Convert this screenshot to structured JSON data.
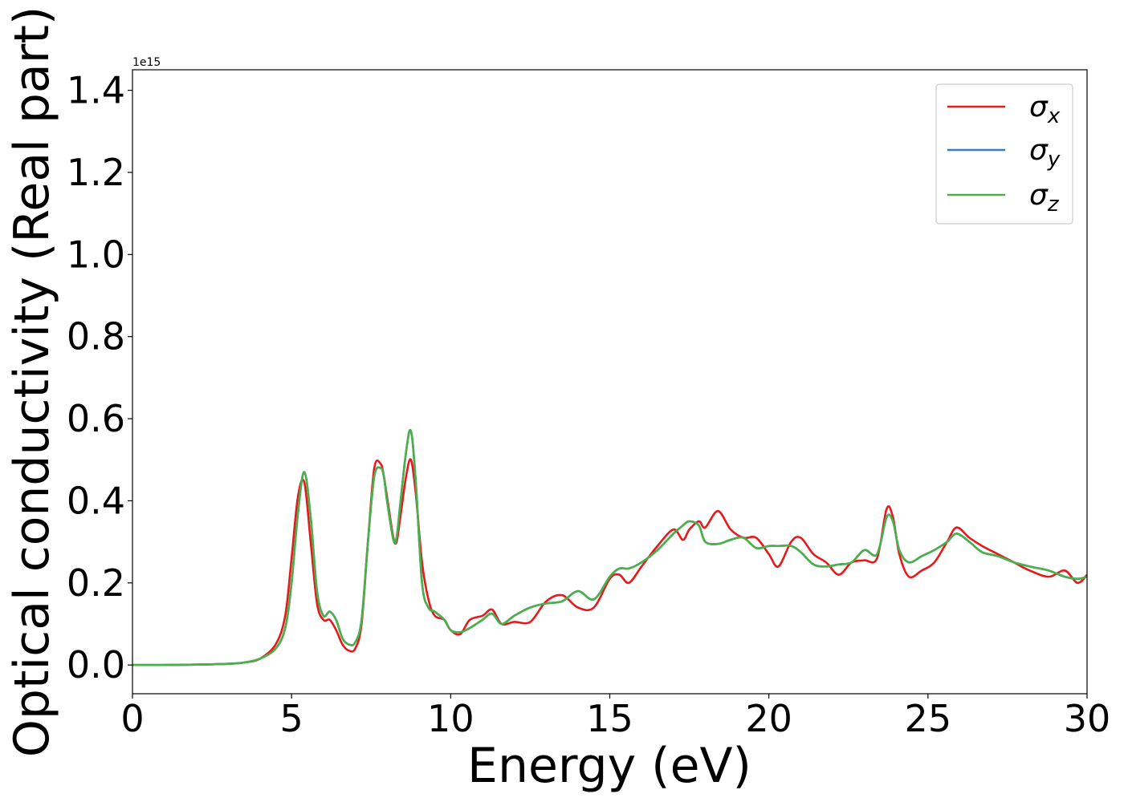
{
  "chart_data": {
    "type": "line",
    "title": "",
    "xlabel": "Energy (eV)",
    "ylabel": "Optical conductivity (Real part)",
    "y_offset_label": "1e15",
    "xlim": [
      0,
      30
    ],
    "ylim": [
      -0.07,
      1.45
    ],
    "grid": false,
    "legend_position": "top-right",
    "x_ticks": [
      0,
      5,
      10,
      15,
      20,
      25,
      30
    ],
    "x_tick_labels": [
      "0",
      "5",
      "10",
      "15",
      "20",
      "25",
      "30"
    ],
    "y_ticks": [
      0.0,
      0.2,
      0.4,
      0.6,
      0.8,
      1.0,
      1.2,
      1.4
    ],
    "y_tick_labels": [
      "0.0",
      "0.2",
      "0.4",
      "0.6",
      "0.8",
      "1.0",
      "1.2",
      "1.4"
    ],
    "x": [
      0,
      1,
      2,
      3,
      3.5,
      4,
      4.5,
      4.8,
      5,
      5.2,
      5.4,
      5.6,
      5.8,
      6,
      6.2,
      6.4,
      6.6,
      6.8,
      7,
      7.2,
      7.4,
      7.6,
      7.8,
      7.9,
      8,
      8.2,
      8.3,
      8.4,
      8.6,
      8.75,
      8.9,
      9.1,
      9.3,
      9.5,
      9.8,
      10,
      10.3,
      10.6,
      11,
      11.3,
      11.6,
      12,
      12.5,
      13,
      13.5,
      14,
      14.5,
      15,
      15.3,
      15.6,
      16,
      16.5,
      17,
      17.3,
      17.5,
      17.8,
      18,
      18.4,
      18.8,
      19.2,
      19.6,
      20,
      20.3,
      20.7,
      21,
      21.4,
      21.8,
      22.2,
      22.6,
      23,
      23.4,
      23.7,
      23.9,
      24.1,
      24.4,
      24.8,
      25.2,
      25.6,
      25.9,
      26.3,
      26.7,
      27.2,
      27.7,
      28.2,
      28.8,
      29.3,
      29.7,
      30
    ],
    "series": [
      {
        "name": "σx",
        "color": "#e41a1c",
        "values": [
          0,
          0,
          0.001,
          0.003,
          0.006,
          0.015,
          0.05,
          0.12,
          0.26,
          0.41,
          0.445,
          0.3,
          0.15,
          0.11,
          0.11,
          0.085,
          0.05,
          0.035,
          0.04,
          0.1,
          0.3,
          0.48,
          0.49,
          0.46,
          0.41,
          0.31,
          0.3,
          0.35,
          0.46,
          0.5,
          0.42,
          0.25,
          0.16,
          0.12,
          0.11,
          0.085,
          0.075,
          0.11,
          0.12,
          0.135,
          0.1,
          0.105,
          0.105,
          0.155,
          0.17,
          0.14,
          0.14,
          0.21,
          0.22,
          0.2,
          0.24,
          0.29,
          0.33,
          0.305,
          0.33,
          0.35,
          0.335,
          0.375,
          0.33,
          0.31,
          0.31,
          0.27,
          0.24,
          0.3,
          0.31,
          0.27,
          0.25,
          0.22,
          0.25,
          0.255,
          0.26,
          0.38,
          0.36,
          0.27,
          0.215,
          0.23,
          0.25,
          0.3,
          0.335,
          0.31,
          0.29,
          0.27,
          0.25,
          0.23,
          0.215,
          0.23,
          0.2,
          0.22
        ]
      },
      {
        "name": "σy",
        "color": "#377eb8",
        "values": [
          0,
          0,
          0.001,
          0.003,
          0.006,
          0.015,
          0.04,
          0.09,
          0.2,
          0.37,
          0.47,
          0.36,
          0.18,
          0.12,
          0.13,
          0.11,
          0.065,
          0.05,
          0.055,
          0.11,
          0.3,
          0.46,
          0.48,
          0.46,
          0.4,
          0.305,
          0.31,
          0.38,
          0.52,
          0.57,
          0.45,
          0.2,
          0.14,
          0.13,
          0.11,
          0.085,
          0.08,
          0.09,
          0.11,
          0.125,
          0.1,
          0.12,
          0.14,
          0.15,
          0.155,
          0.18,
          0.16,
          0.215,
          0.235,
          0.235,
          0.25,
          0.28,
          0.32,
          0.34,
          0.35,
          0.34,
          0.3,
          0.295,
          0.305,
          0.31,
          0.285,
          0.29,
          0.29,
          0.29,
          0.275,
          0.245,
          0.24,
          0.245,
          0.25,
          0.28,
          0.27,
          0.36,
          0.35,
          0.28,
          0.25,
          0.265,
          0.28,
          0.3,
          0.32,
          0.3,
          0.275,
          0.265,
          0.25,
          0.24,
          0.23,
          0.215,
          0.21,
          0.215
        ]
      },
      {
        "name": "σz",
        "color": "#4daf4a",
        "values": [
          0,
          0,
          0.001,
          0.003,
          0.006,
          0.015,
          0.04,
          0.09,
          0.2,
          0.37,
          0.47,
          0.36,
          0.18,
          0.12,
          0.13,
          0.11,
          0.065,
          0.05,
          0.055,
          0.11,
          0.3,
          0.46,
          0.48,
          0.46,
          0.4,
          0.305,
          0.31,
          0.38,
          0.52,
          0.57,
          0.45,
          0.2,
          0.14,
          0.13,
          0.11,
          0.085,
          0.08,
          0.09,
          0.11,
          0.125,
          0.1,
          0.12,
          0.14,
          0.15,
          0.155,
          0.18,
          0.16,
          0.215,
          0.235,
          0.235,
          0.25,
          0.28,
          0.32,
          0.34,
          0.35,
          0.34,
          0.3,
          0.295,
          0.305,
          0.31,
          0.285,
          0.29,
          0.29,
          0.29,
          0.275,
          0.245,
          0.24,
          0.245,
          0.25,
          0.28,
          0.27,
          0.36,
          0.35,
          0.28,
          0.25,
          0.265,
          0.28,
          0.3,
          0.32,
          0.3,
          0.275,
          0.265,
          0.25,
          0.24,
          0.23,
          0.215,
          0.21,
          0.215
        ]
      }
    ],
    "legend": [
      {
        "symbol": "σ",
        "sub": "x"
      },
      {
        "symbol": "σ",
        "sub": "y"
      },
      {
        "symbol": "σ",
        "sub": "z"
      }
    ]
  }
}
